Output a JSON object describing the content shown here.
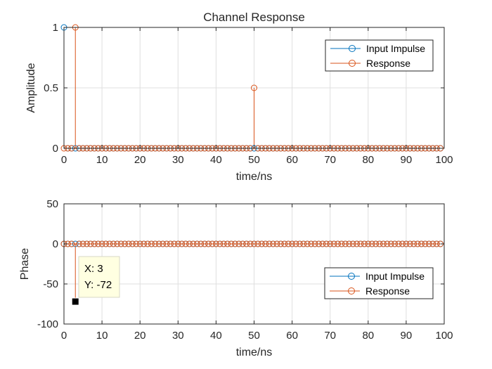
{
  "chart_data": [
    {
      "type": "stem",
      "title": "Channel Response",
      "xlabel": "time/ns",
      "ylabel": "Amplitude",
      "xlim": [
        0,
        100
      ],
      "ylim": [
        0,
        1
      ],
      "xticks": [
        "0",
        "10",
        "20",
        "30",
        "40",
        "50",
        "60",
        "70",
        "80",
        "90",
        "100"
      ],
      "yticks": [
        "0",
        "0.5",
        "1"
      ],
      "grid": true,
      "legend_position": "top-right",
      "x": {
        "start": 0,
        "end": 99,
        "step": 1
      },
      "series": [
        {
          "name": "Input Impulse",
          "color": "#0072BD",
          "default": 0,
          "nonzero": [
            {
              "x": 0,
              "y": 1
            }
          ]
        },
        {
          "name": "Response",
          "color": "#D95319",
          "default": 0,
          "nonzero": [
            {
              "x": 3,
              "y": 1
            },
            {
              "x": 50,
              "y": 0.5
            }
          ]
        }
      ]
    },
    {
      "type": "stem",
      "title": "",
      "xlabel": "time/ns",
      "ylabel": "Phase",
      "xlim": [
        0,
        100
      ],
      "ylim": [
        -100,
        50
      ],
      "xticks": [
        "0",
        "10",
        "20",
        "30",
        "40",
        "50",
        "60",
        "70",
        "80",
        "90",
        "100"
      ],
      "yticks": [
        "50",
        "0",
        "-50",
        "-100"
      ],
      "grid": true,
      "legend_position": "bottom-right",
      "x": {
        "start": 0,
        "end": 99,
        "step": 1
      },
      "series": [
        {
          "name": "Input Impulse",
          "color": "#0072BD",
          "default": 0,
          "nonzero": []
        },
        {
          "name": "Response",
          "color": "#D95319",
          "default": 0,
          "nonzero": [
            {
              "x": 3,
              "y": -72
            }
          ]
        }
      ],
      "datatip": {
        "x": 3,
        "y": -72,
        "x_text": "X: 3",
        "y_text": "Y: -72"
      }
    }
  ]
}
